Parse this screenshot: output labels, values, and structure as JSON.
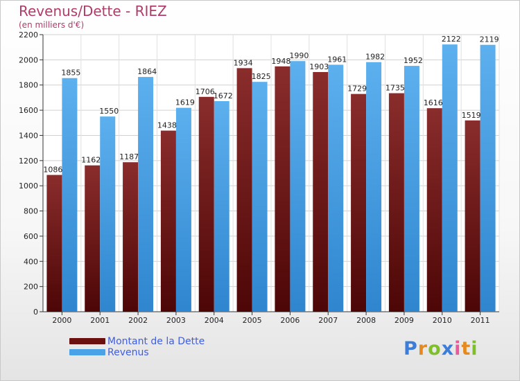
{
  "chart_data": {
    "type": "bar",
    "title": "Revenus/Dette - RIEZ",
    "subtitle": "(en milliers d'€)",
    "categories": [
      "2000",
      "2001",
      "2002",
      "2003",
      "2004",
      "2005",
      "2006",
      "2007",
      "2008",
      "2009",
      "2010",
      "2011"
    ],
    "series": [
      {
        "name": "Montant de la Dette",
        "color": "#7a1c1c",
        "values": [
          1086,
          1162,
          1187,
          1438,
          1706,
          1934,
          1948,
          1903,
          1729,
          1735,
          1616,
          1519
        ]
      },
      {
        "name": "Revenus",
        "color": "#4aa3e6",
        "values": [
          1855,
          1550,
          1864,
          1619,
          1672,
          1825,
          1990,
          1961,
          1982,
          1952,
          2122,
          2119
        ]
      }
    ],
    "ylim": [
      0,
      2200
    ],
    "yticks": [
      0,
      200,
      400,
      600,
      800,
      1000,
      1200,
      1400,
      1600,
      1800,
      2000,
      2200
    ],
    "grid": true,
    "legend": "bottom-left"
  },
  "logo": {
    "letters": [
      {
        "char": "P",
        "color": "#3b7dd8"
      },
      {
        "char": "r",
        "color": "#e58a1f"
      },
      {
        "char": "o",
        "color": "#7fbf2a"
      },
      {
        "char": "x",
        "color": "#3b7dd8"
      },
      {
        "char": "i",
        "color": "#e85a9c"
      },
      {
        "char": "t",
        "color": "#e58a1f"
      },
      {
        "char": "i",
        "color": "#7fbf2a"
      }
    ]
  }
}
